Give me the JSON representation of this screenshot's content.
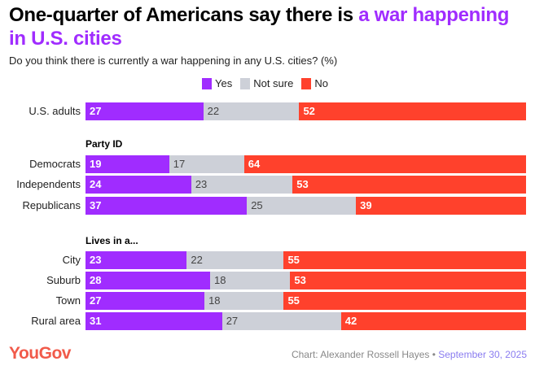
{
  "title": {
    "prefix": "One-quarter of Americans say there is ",
    "highlight": "a war happening in U.S. cities"
  },
  "subtitle": "Do you think there is currently a war happening in any U.S. cities? (%)",
  "colors": {
    "yes": "#a02cff",
    "not_sure": "#cdd0d8",
    "no": "#ff412c",
    "highlight": "#a02cff"
  },
  "chart_data": {
    "type": "bar",
    "stacked": true,
    "orientation": "horizontal",
    "title": "One-quarter of Americans say there is a war happening in U.S. cities",
    "legend": [
      "Yes",
      "Not sure",
      "No"
    ],
    "legend_position": "top",
    "groups": [
      {
        "heading": "",
        "rows": [
          {
            "label": "U.S. adults",
            "values": [
              27,
              22,
              52
            ]
          }
        ]
      },
      {
        "heading": "Party ID",
        "rows": [
          {
            "label": "Democrats",
            "values": [
              19,
              17,
              64
            ]
          },
          {
            "label": "Independents",
            "values": [
              24,
              23,
              53
            ]
          },
          {
            "label": "Republicans",
            "values": [
              37,
              25,
              39
            ]
          }
        ]
      },
      {
        "heading": "Lives in a...",
        "rows": [
          {
            "label": "City",
            "values": [
              23,
              22,
              55
            ]
          },
          {
            "label": "Suburb",
            "values": [
              28,
              18,
              53
            ]
          },
          {
            "label": "Town",
            "values": [
              27,
              18,
              55
            ]
          },
          {
            "label": "Rural area",
            "values": [
              31,
              27,
              42
            ]
          }
        ]
      }
    ]
  },
  "footer": {
    "logo": "YouGov",
    "credit": "Chart: Alexander Rossell Hayes",
    "separator": " • ",
    "date": "September 30, 2025"
  }
}
